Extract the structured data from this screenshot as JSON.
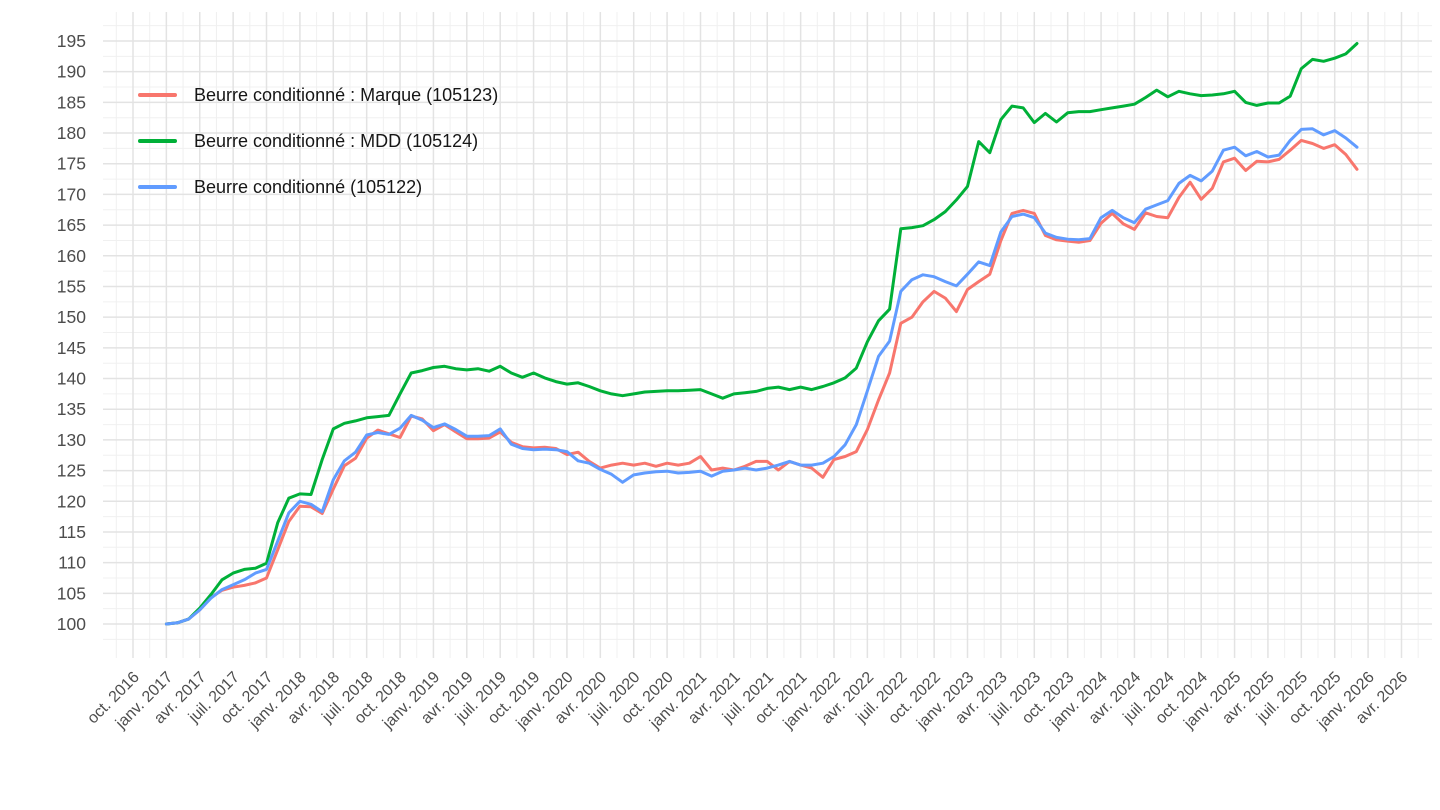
{
  "chart_data": {
    "type": "line",
    "title": "",
    "xlabel": "",
    "ylabel": "",
    "grid": true,
    "legend_position": "top-left-inside",
    "x_axis": {
      "tick_labels": [
        "oct. 2016",
        "janv. 2017",
        "avr. 2017",
        "juil. 2017",
        "oct. 2017",
        "janv. 2018",
        "avr. 2018",
        "juil. 2018",
        "oct. 2018",
        "janv. 2019",
        "avr. 2019",
        "juil. 2019",
        "oct. 2019",
        "janv. 2020",
        "avr. 2020",
        "juil. 2020",
        "oct. 2020",
        "janv. 2021",
        "avr. 2021",
        "juil. 2021",
        "oct. 2021",
        "janv. 2022",
        "avr. 2022",
        "juil. 2022",
        "oct. 2022",
        "janv. 2023",
        "avr. 2023",
        "juil. 2023",
        "oct. 2023",
        "janv. 2024",
        "avr. 2024",
        "juil. 2024",
        "oct. 2024",
        "janv. 2025",
        "avr. 2025",
        "juil. 2025",
        "oct. 2025",
        "janv. 2026",
        "avr. 2026"
      ],
      "months_between_ticks": 3
    },
    "y_axis": {
      "ticks": [
        100,
        105,
        110,
        115,
        120,
        125,
        130,
        135,
        140,
        145,
        150,
        155,
        160,
        165,
        170,
        175,
        180,
        185,
        190,
        195
      ],
      "minor_step": 2.5,
      "ylim_shown": [
        94.5,
        199.5
      ]
    },
    "series_time": {
      "start": "janv. 2017",
      "end": "déc. 2025",
      "frequency": "monthly"
    },
    "series": [
      {
        "id": "105123",
        "name": "Beurre conditionné : Marque (105123)",
        "color": "#F8766D",
        "values": [
          100,
          100.2,
          100.8,
          102.3,
          104.3,
          105.5,
          106,
          106.3,
          106.7,
          107.5,
          112.1,
          116.7,
          119.2,
          119.1,
          118,
          122,
          125.8,
          127,
          130.3,
          131.6,
          131,
          130.4,
          133.9,
          133.4,
          131.5,
          132.5,
          131.3,
          130.2,
          130.2,
          130.3,
          131.3,
          129.6,
          128.9,
          128.7,
          128.8,
          128.6,
          127.6,
          128,
          126.5,
          125.4,
          125.9,
          126.2,
          125.9,
          126.2,
          125.7,
          126.2,
          125.9,
          126.2,
          127.3,
          125.1,
          125.4,
          125.1,
          125.7,
          126.5,
          126.5,
          125.1,
          126.5,
          125.9,
          125.4,
          123.9,
          126.8,
          127.3,
          128.1,
          131.7,
          136.5,
          140.9,
          149,
          150,
          152.5,
          154.2,
          153.1,
          150.9,
          154.5,
          155.8,
          157,
          162.5,
          166.9,
          167.4,
          166.9,
          163.3,
          162.6,
          162.4,
          162.2,
          162.5,
          165.3,
          166.9,
          165.2,
          164.3,
          167,
          166.4,
          166.2,
          169.5,
          172,
          169.2,
          171,
          175.3,
          175.9,
          173.9,
          175.4,
          175.3,
          175.7,
          177.2,
          178.8,
          178.3,
          177.5,
          178.1,
          176.5,
          174.1
        ]
      },
      {
        "id": "105124",
        "name": "Beurre conditionné : MDD (105124)",
        "color": "#00B038",
        "values": [
          100,
          100.2,
          100.8,
          102.6,
          104.8,
          107.2,
          108.3,
          108.9,
          109.1,
          109.9,
          116.5,
          120.5,
          121.2,
          121.1,
          126.8,
          131.8,
          132.7,
          133.1,
          133.6,
          133.8,
          134,
          137.5,
          140.9,
          141.3,
          141.8,
          142,
          141.6,
          141.4,
          141.6,
          141.2,
          142,
          140.9,
          140.2,
          140.9,
          140.1,
          139.5,
          139.1,
          139.3,
          138.7,
          138,
          137.5,
          137.2,
          137.5,
          137.8,
          137.9,
          138,
          138,
          138.1,
          138.2,
          137.5,
          136.8,
          137.5,
          137.7,
          137.9,
          138.4,
          138.6,
          138.2,
          138.6,
          138.2,
          138.7,
          139.3,
          140.1,
          141.7,
          146,
          149.4,
          151.3,
          164.4,
          164.6,
          164.9,
          165.9,
          167.2,
          169.1,
          171.3,
          178.6,
          176.8,
          182.2,
          184.4,
          184.1,
          181.7,
          183.2,
          181.8,
          183.3,
          183.5,
          183.5,
          183.8,
          184.1,
          184.4,
          184.7,
          185.8,
          187,
          185.9,
          186.8,
          186.4,
          186.1,
          186.2,
          186.4,
          186.8,
          185,
          184.5,
          184.9,
          184.9,
          186,
          190.5,
          192,
          191.7,
          192.2,
          192.9,
          194.6
        ]
      },
      {
        "id": "105122",
        "name": "Beurre conditionné (105122)",
        "color": "#619CFF",
        "values": [
          100,
          100.2,
          100.8,
          102.3,
          104.2,
          105.6,
          106.4,
          107.2,
          108.3,
          108.9,
          113.5,
          118.1,
          120,
          119.5,
          118.3,
          123.5,
          126.6,
          128,
          130.8,
          131.2,
          130.9,
          131.9,
          134,
          133.2,
          132,
          132.6,
          131.7,
          130.6,
          130.6,
          130.7,
          131.8,
          129.3,
          128.6,
          128.4,
          128.5,
          128.4,
          128.1,
          126.6,
          126.2,
          125.2,
          124.4,
          123.1,
          124.3,
          124.6,
          124.8,
          124.9,
          124.6,
          124.7,
          124.9,
          124.1,
          124.9,
          125.1,
          125.4,
          125.1,
          125.4,
          125.9,
          126.5,
          125.9,
          125.9,
          126.2,
          127.3,
          129.2,
          132.5,
          138,
          143.6,
          146.1,
          154.2,
          156.1,
          156.9,
          156.6,
          155.8,
          155.1,
          157,
          159,
          158.4,
          163.9,
          166.4,
          166.8,
          166.2,
          163.7,
          163,
          162.7,
          162.6,
          162.8,
          166.2,
          167.4,
          166.2,
          165.4,
          167.6,
          168.3,
          169,
          171.8,
          173.1,
          172.2,
          173.8,
          177.2,
          177.7,
          176.3,
          177,
          176.1,
          176.4,
          178.8,
          180.6,
          180.7,
          179.7,
          180.4,
          179.2,
          177.7
        ]
      }
    ]
  }
}
